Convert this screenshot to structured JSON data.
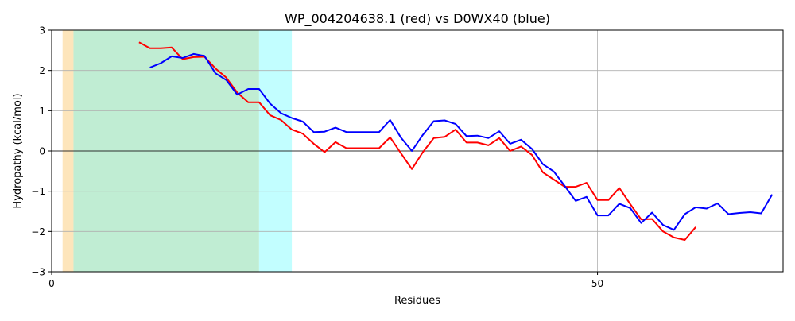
{
  "chart_data": {
    "type": "line",
    "title": "WP_004204638.1 (red) vs D0WX40 (blue)",
    "xlabel": "Residues",
    "ylabel": "Hydropathy (kcal/mol)",
    "xlim": [
      0,
      67
    ],
    "ylim": [
      -3,
      3
    ],
    "xticks": [
      0,
      50
    ],
    "yticks": [
      -3,
      -2,
      -1,
      0,
      1,
      2,
      3
    ],
    "grid": true,
    "zero_line": true,
    "bands": [
      {
        "x0": 1.0,
        "x1": 2.0,
        "color": "#fde5bb"
      },
      {
        "x0": 2.0,
        "x1": 19.0,
        "color": "#c0edd3"
      },
      {
        "x0": 19.0,
        "x1": 22.0,
        "color": "#c2feff"
      }
    ],
    "series": [
      {
        "color": "#ff0000",
        "x": [
          8,
          9,
          10,
          11,
          12,
          13,
          14,
          15,
          16,
          17,
          18,
          19,
          20,
          21,
          22,
          23,
          24,
          25,
          26,
          27,
          28,
          29,
          30,
          31,
          32,
          33,
          34,
          35,
          36,
          37,
          38,
          39,
          40,
          41,
          42,
          43,
          44,
          45,
          46,
          47,
          48,
          49,
          50,
          51,
          52,
          53,
          54,
          55,
          56,
          57,
          58,
          59
        ],
        "y": [
          2.7,
          2.55,
          2.55,
          2.57,
          2.28,
          2.33,
          2.34,
          2.05,
          1.82,
          1.45,
          1.21,
          1.21,
          0.89,
          0.77,
          0.53,
          0.43,
          0.18,
          -0.03,
          0.22,
          0.07,
          0.07,
          0.07,
          0.07,
          0.34,
          -0.06,
          -0.45,
          -0.03,
          0.32,
          0.35,
          0.53,
          0.21,
          0.21,
          0.14,
          0.32,
          0.0,
          0.11,
          -0.1,
          -0.53,
          -0.71,
          -0.89,
          -0.89,
          -0.79,
          -1.22,
          -1.22,
          -0.92,
          -1.32,
          -1.7,
          -1.69,
          -2.0,
          -2.15,
          -2.21,
          -1.89
        ]
      },
      {
        "color": "#0000ff",
        "x": [
          9,
          10,
          11,
          12,
          13,
          14,
          15,
          16,
          17,
          18,
          19,
          20,
          21,
          22,
          23,
          24,
          25,
          26,
          27,
          28,
          29,
          30,
          31,
          32,
          33,
          34,
          35,
          36,
          37,
          38,
          39,
          40,
          41,
          42,
          43,
          44,
          45,
          46,
          47,
          48,
          49,
          50,
          51,
          52,
          53,
          54,
          55,
          56,
          57,
          58,
          59,
          60,
          61,
          62,
          63,
          64,
          65,
          66
        ],
        "y": [
          2.07,
          2.18,
          2.35,
          2.31,
          2.41,
          2.36,
          1.93,
          1.76,
          1.4,
          1.54,
          1.54,
          1.18,
          0.94,
          0.82,
          0.73,
          0.47,
          0.48,
          0.58,
          0.47,
          0.47,
          0.47,
          0.47,
          0.77,
          0.33,
          0.0,
          0.4,
          0.74,
          0.76,
          0.67,
          0.37,
          0.38,
          0.32,
          0.49,
          0.18,
          0.28,
          0.05,
          -0.33,
          -0.51,
          -0.87,
          -1.24,
          -1.14,
          -1.6,
          -1.6,
          -1.31,
          -1.42,
          -1.79,
          -1.53,
          -1.84,
          -1.96,
          -1.57,
          -1.4,
          -1.43,
          -1.3,
          -1.57,
          -1.54,
          -1.52,
          -1.55,
          -1.08
        ]
      }
    ]
  }
}
